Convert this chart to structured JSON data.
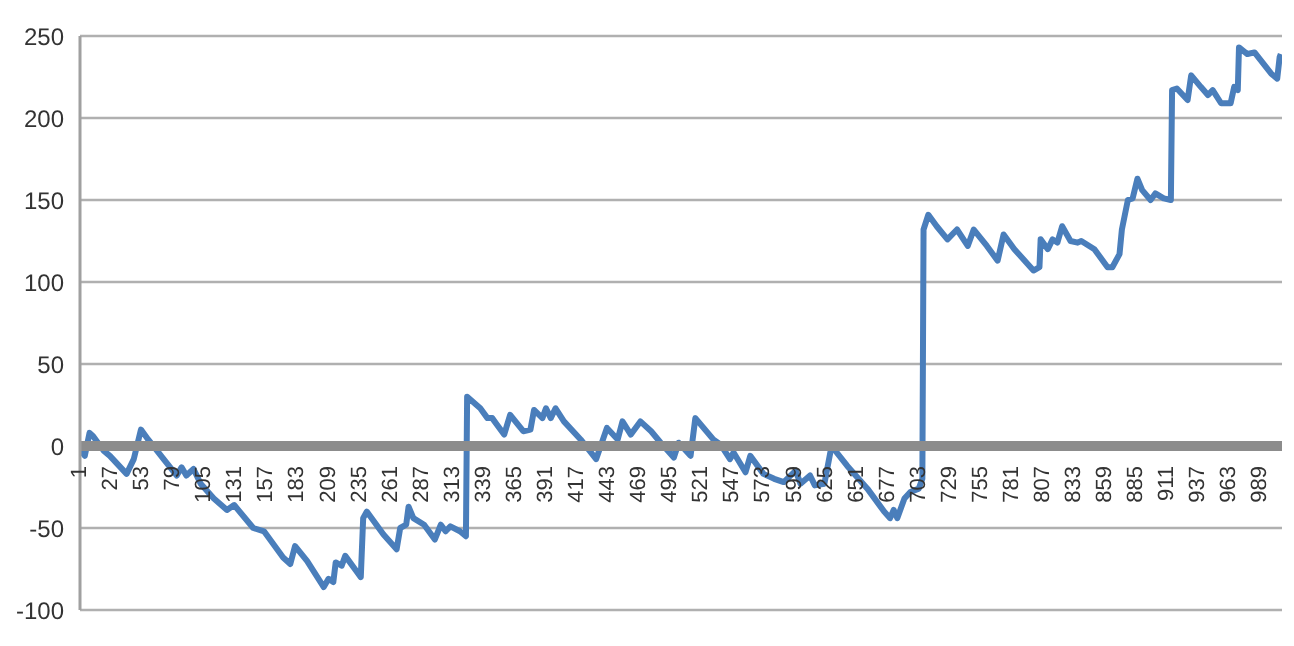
{
  "chart_data": {
    "type": "line",
    "x": [
      1,
      5,
      9,
      12,
      21,
      26,
      40,
      46,
      52,
      58,
      71,
      82,
      86,
      90,
      96,
      102,
      113,
      124,
      130,
      146,
      155,
      171,
      177,
      181,
      191,
      205,
      209,
      213,
      215,
      220,
      223,
      233,
      236,
      238,
      241,
      255,
      266,
      269,
      274,
      276,
      280,
      289,
      298,
      303,
      307,
      311,
      319,
      324,
      325,
      336,
      342,
      346,
      350,
      356,
      361,
      372,
      378,
      381,
      388,
      391,
      395,
      399,
      406,
      420,
      433,
      442,
      451,
      455,
      462,
      470,
      479,
      487,
      498,
      502,
      512,
      516,
      531,
      537,
      545,
      548,
      558,
      562,
      573,
      582,
      590,
      600,
      604,
      612,
      616,
      624,
      630,
      643,
      660,
      674,
      679,
      682,
      685,
      691,
      696,
      703,
      706,
      707,
      711,
      718,
      727,
      735,
      744,
      749,
      760,
      769,
      774,
      783,
      799,
      804,
      805,
      811,
      815,
      819,
      823,
      830,
      836,
      839,
      850,
      861,
      865,
      871,
      873,
      878,
      882,
      886,
      890,
      897,
      901,
      908,
      914,
      915,
      919,
      928,
      931,
      939,
      945,
      949,
      956,
      964,
      967,
      970,
      971,
      978,
      984,
      998,
      1003,
      1005,
      1006
    ],
    "series": [
      {
        "color": "#4a7ebb",
        "values": [
          -2,
          -6,
          8,
          6,
          -3,
          -6,
          -17,
          -8,
          10,
          4,
          -8,
          -18,
          -13,
          -18,
          -14,
          -23,
          -32,
          -39,
          -36,
          -50,
          -52,
          -68,
          -72,
          -61,
          -70,
          -86,
          -81,
          -83,
          -71,
          -73,
          -67,
          -77,
          -80,
          -44,
          -40,
          -54,
          -63,
          -50,
          -48,
          -37,
          -44,
          -48,
          -57,
          -48,
          -52,
          -49,
          -52,
          -55,
          30,
          23,
          17,
          17,
          13,
          7,
          19,
          9,
          10,
          22,
          17,
          23,
          17,
          23,
          15,
          4,
          -8,
          11,
          4,
          15,
          7,
          15,
          9,
          2,
          -7,
          2,
          -6,
          17,
          4,
          1,
          -8,
          -4,
          -16,
          -6,
          -17,
          -20,
          -22,
          -15,
          -23,
          -18,
          -24,
          -23,
          0,
          -12,
          -26,
          -40,
          -44,
          -39,
          -44,
          -32,
          -28,
          -26,
          -20,
          132,
          141,
          134,
          126,
          132,
          122,
          132,
          122,
          113,
          129,
          120,
          107,
          109,
          126,
          120,
          126,
          124,
          134,
          125,
          124,
          125,
          120,
          109,
          109,
          117,
          132,
          150,
          151,
          163,
          156,
          150,
          154,
          151,
          150,
          217,
          218,
          211,
          226,
          219,
          214,
          217,
          209,
          209,
          219,
          217,
          243,
          239,
          240,
          227,
          224,
          237,
          239
        ]
      }
    ],
    "xlim": [
      1,
      1007
    ],
    "xticks": [
      1,
      27,
      53,
      79,
      105,
      131,
      157,
      183,
      209,
      235,
      261,
      287,
      313,
      339,
      365,
      391,
      417,
      443,
      469,
      495,
      521,
      547,
      573,
      599,
      625,
      651,
      677,
      703,
      729,
      755,
      781,
      807,
      833,
      859,
      885,
      911,
      937,
      963,
      989
    ],
    "ylim": [
      -100,
      250
    ],
    "yticks": [
      -100,
      -50,
      0,
      50,
      100,
      150,
      200,
      250
    ],
    "grid": "y",
    "legend": false,
    "marker": "none",
    "line_style": "solid"
  }
}
